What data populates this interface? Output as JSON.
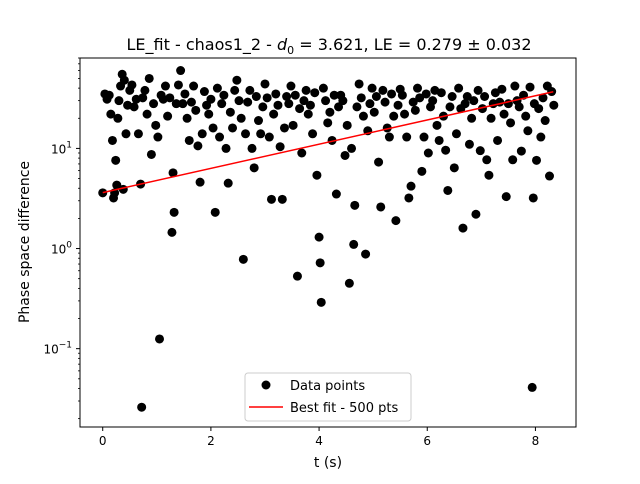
{
  "chart_data": {
    "type": "scatter",
    "title_parts": {
      "prefix": "LE_fit - chaos1_2 - ",
      "d_symbol": "d",
      "d_subscript": "0",
      "suffix": " = 3.621, LE = 0.279 ± 0.032"
    },
    "xlabel": "t (s)",
    "ylabel": "Phase space difference",
    "xlim": [
      -0.42,
      8.75
    ],
    "ylim": [
      0.0165,
      80
    ],
    "yscale": "log",
    "grid": false,
    "legend_position": "lower center",
    "x_ticks": [
      0,
      2,
      4,
      6,
      8
    ],
    "x_tick_labels": [
      "0",
      "2",
      "4",
      "6",
      "8"
    ],
    "y_ticks": [
      0.1,
      1,
      10
    ],
    "y_tick_labels": [
      {
        "base": "10",
        "exp": "−1"
      },
      {
        "base": "10",
        "exp": "0"
      },
      {
        "base": "10",
        "exp": "1"
      }
    ],
    "series": [
      {
        "name": "Data points",
        "kind": "scatter",
        "color": "#000000",
        "points": [
          [
            0.0,
            3.6
          ],
          [
            0.04,
            35
          ],
          [
            0.08,
            31
          ],
          [
            0.12,
            34
          ],
          [
            0.15,
            22
          ],
          [
            0.18,
            12
          ],
          [
            0.2,
            3.2
          ],
          [
            0.22,
            3.6
          ],
          [
            0.24,
            7.6
          ],
          [
            0.26,
            4.3
          ],
          [
            0.28,
            20
          ],
          [
            0.3,
            30
          ],
          [
            0.33,
            42
          ],
          [
            0.36,
            55
          ],
          [
            0.38,
            3.9
          ],
          [
            0.4,
            48
          ],
          [
            0.43,
            14
          ],
          [
            0.46,
            27
          ],
          [
            0.5,
            38
          ],
          [
            0.54,
            43
          ],
          [
            0.58,
            26
          ],
          [
            0.62,
            31
          ],
          [
            0.66,
            14
          ],
          [
            0.7,
            4.4
          ],
          [
            0.72,
            0.026
          ],
          [
            0.74,
            32
          ],
          [
            0.78,
            38
          ],
          [
            0.82,
            22
          ],
          [
            0.86,
            50
          ],
          [
            0.9,
            8.7
          ],
          [
            0.94,
            28
          ],
          [
            0.98,
            17
          ],
          [
            1.02,
            13
          ],
          [
            1.05,
            0.125
          ],
          [
            1.08,
            34
          ],
          [
            1.12,
            31
          ],
          [
            1.16,
            42
          ],
          [
            1.2,
            21
          ],
          [
            1.24,
            32
          ],
          [
            1.28,
            1.45
          ],
          [
            1.3,
            5.7
          ],
          [
            1.32,
            2.3
          ],
          [
            1.36,
            28
          ],
          [
            1.4,
            43
          ],
          [
            1.44,
            60
          ],
          [
            1.48,
            28
          ],
          [
            1.52,
            35
          ],
          [
            1.56,
            20
          ],
          [
            1.6,
            12
          ],
          [
            1.64,
            29
          ],
          [
            1.68,
            42
          ],
          [
            1.72,
            24
          ],
          [
            1.76,
            10.6
          ],
          [
            1.8,
            4.6
          ],
          [
            1.84,
            14
          ],
          [
            1.88,
            37
          ],
          [
            1.92,
            27
          ],
          [
            1.96,
            22
          ],
          [
            2.0,
            31
          ],
          [
            2.04,
            16
          ],
          [
            2.08,
            2.3
          ],
          [
            2.12,
            40
          ],
          [
            2.16,
            13
          ],
          [
            2.2,
            28
          ],
          [
            2.24,
            34
          ],
          [
            2.28,
            10
          ],
          [
            2.32,
            4.5
          ],
          [
            2.36,
            23
          ],
          [
            2.4,
            16
          ],
          [
            2.44,
            38
          ],
          [
            2.48,
            48
          ],
          [
            2.52,
            30
          ],
          [
            2.56,
            20
          ],
          [
            2.6,
            0.78
          ],
          [
            2.64,
            14
          ],
          [
            2.68,
            29
          ],
          [
            2.72,
            38
          ],
          [
            2.76,
            10
          ],
          [
            2.8,
            6.4
          ],
          [
            2.84,
            33
          ],
          [
            2.88,
            19
          ],
          [
            2.92,
            14
          ],
          [
            2.96,
            26
          ],
          [
            3.0,
            44
          ],
          [
            3.04,
            32
          ],
          [
            3.08,
            13
          ],
          [
            3.12,
            3.1
          ],
          [
            3.16,
            22
          ],
          [
            3.2,
            35
          ],
          [
            3.24,
            27
          ],
          [
            3.28,
            10.4
          ],
          [
            3.32,
            3.1
          ],
          [
            3.36,
            16
          ],
          [
            3.4,
            33
          ],
          [
            3.44,
            28
          ],
          [
            3.48,
            42
          ],
          [
            3.52,
            17
          ],
          [
            3.56,
            34
          ],
          [
            3.6,
            0.53
          ],
          [
            3.64,
            25
          ],
          [
            3.68,
            9
          ],
          [
            3.72,
            30
          ],
          [
            3.76,
            38
          ],
          [
            3.8,
            22
          ],
          [
            3.84,
            27
          ],
          [
            3.88,
            14
          ],
          [
            3.92,
            36
          ],
          [
            3.96,
            5.4
          ],
          [
            4.0,
            1.3
          ],
          [
            4.02,
            0.72
          ],
          [
            4.04,
            0.29
          ],
          [
            4.08,
            40
          ],
          [
            4.12,
            30
          ],
          [
            4.16,
            18
          ],
          [
            4.2,
            23
          ],
          [
            4.24,
            12
          ],
          [
            4.28,
            34
          ],
          [
            4.32,
            3.5
          ],
          [
            4.36,
            26
          ],
          [
            4.4,
            34
          ],
          [
            4.44,
            30
          ],
          [
            4.48,
            8.5
          ],
          [
            4.52,
            17
          ],
          [
            4.56,
            0.45
          ],
          [
            4.6,
            10
          ],
          [
            4.64,
            1.1
          ],
          [
            4.66,
            2.7
          ],
          [
            4.7,
            26
          ],
          [
            4.74,
            44
          ],
          [
            4.78,
            32
          ],
          [
            4.82,
            21
          ],
          [
            4.86,
            0.88
          ],
          [
            4.9,
            15
          ],
          [
            4.94,
            28
          ],
          [
            4.98,
            40
          ],
          [
            5.02,
            23
          ],
          [
            5.06,
            33
          ],
          [
            5.1,
            7.3
          ],
          [
            5.14,
            2.6
          ],
          [
            5.18,
            38
          ],
          [
            5.22,
            29
          ],
          [
            5.26,
            16
          ],
          [
            5.3,
            13
          ],
          [
            5.34,
            35
          ],
          [
            5.38,
            21
          ],
          [
            5.42,
            1.9
          ],
          [
            5.46,
            27
          ],
          [
            5.5,
            39
          ],
          [
            5.54,
            34
          ],
          [
            5.58,
            22
          ],
          [
            5.62,
            13
          ],
          [
            5.66,
            3.2
          ],
          [
            5.7,
            4.2
          ],
          [
            5.74,
            29
          ],
          [
            5.78,
            24
          ],
          [
            5.82,
            40
          ],
          [
            5.86,
            32
          ],
          [
            5.9,
            5.9
          ],
          [
            5.94,
            13
          ],
          [
            5.98,
            35
          ],
          [
            6.02,
            9
          ],
          [
            6.06,
            26
          ],
          [
            6.1,
            30
          ],
          [
            6.14,
            38
          ],
          [
            6.18,
            17
          ],
          [
            6.22,
            12
          ],
          [
            6.26,
            36
          ],
          [
            6.3,
            21
          ],
          [
            6.34,
            9.6
          ],
          [
            6.38,
            3.8
          ],
          [
            6.42,
            26
          ],
          [
            6.46,
            33
          ],
          [
            6.5,
            6.4
          ],
          [
            6.54,
            14
          ],
          [
            6.58,
            40
          ],
          [
            6.62,
            25
          ],
          [
            6.66,
            1.6
          ],
          [
            6.7,
            28
          ],
          [
            6.74,
            33
          ],
          [
            6.78,
            11
          ],
          [
            6.82,
            20
          ],
          [
            6.86,
            30
          ],
          [
            6.9,
            2.2
          ],
          [
            6.94,
            38
          ],
          [
            6.98,
            9.5
          ],
          [
            7.02,
            25
          ],
          [
            7.06,
            33
          ],
          [
            7.1,
            7.7
          ],
          [
            7.14,
            5.4
          ],
          [
            7.18,
            20
          ],
          [
            7.22,
            28
          ],
          [
            7.26,
            36
          ],
          [
            7.3,
            12
          ],
          [
            7.34,
            29
          ],
          [
            7.38,
            39
          ],
          [
            7.42,
            22
          ],
          [
            7.46,
            3.3
          ],
          [
            7.5,
            28
          ],
          [
            7.54,
            18
          ],
          [
            7.58,
            7.7
          ],
          [
            7.62,
            42
          ],
          [
            7.66,
            30
          ],
          [
            7.7,
            26
          ],
          [
            7.74,
            9.4
          ],
          [
            7.78,
            34
          ],
          [
            7.82,
            21
          ],
          [
            7.86,
            15
          ],
          [
            7.9,
            41
          ],
          [
            7.94,
            0.041
          ],
          [
            7.96,
            3.2
          ],
          [
            7.98,
            28
          ],
          [
            8.02,
            7.6
          ],
          [
            8.06,
            25
          ],
          [
            8.1,
            13
          ],
          [
            8.14,
            32
          ],
          [
            8.18,
            19
          ],
          [
            8.22,
            42
          ],
          [
            8.26,
            5.3
          ],
          [
            8.3,
            37
          ],
          [
            8.34,
            27
          ]
        ]
      },
      {
        "name": "Best fit - 500 pts",
        "kind": "line",
        "color": "#ff0000",
        "x": [
          0,
          8.33
        ],
        "y": [
          3.621,
          36.8
        ]
      }
    ]
  }
}
